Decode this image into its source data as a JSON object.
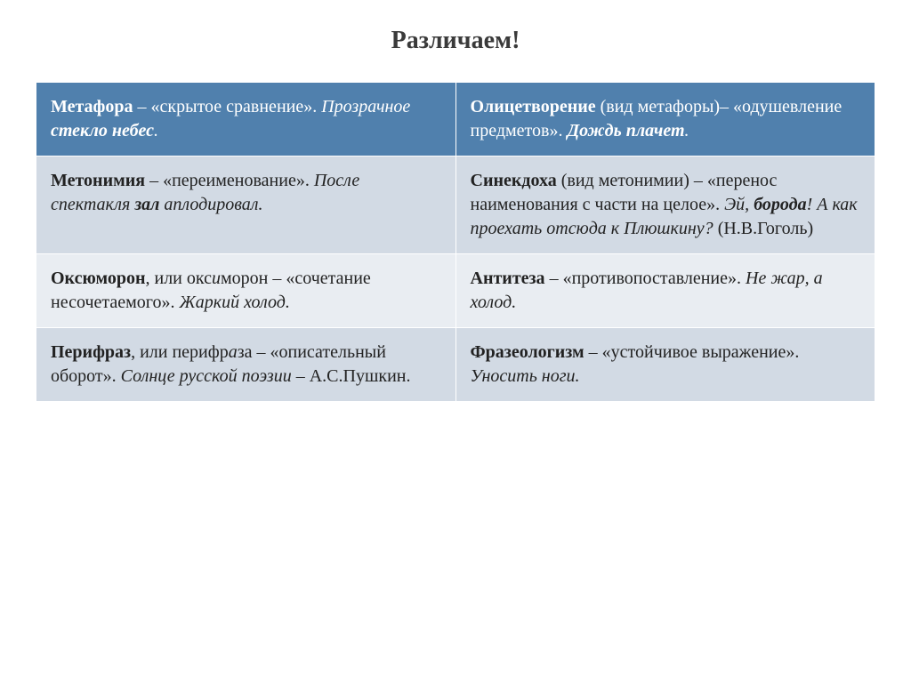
{
  "title": "Различаем!",
  "table": {
    "columns": [
      "left",
      "right"
    ],
    "col_width_pct": [
      50,
      50
    ],
    "header_bg": "#5080ad",
    "header_text_color": "#ffffff",
    "row_a_bg": "#d2dae4",
    "row_b_bg": "#e9edf2",
    "font_family": "Times New Roman",
    "font_size_pt": 15,
    "title_font_size_pt": 21,
    "rows": [
      {
        "style": "header",
        "left": {
          "term": "Метафора",
          "def": " – «скрытое сравнение». ",
          "example_italic_prefix": "Прозрачное ",
          "example_bi": "стекло небес",
          "example_italic_suffix": "."
        },
        "right": {
          "term": "Олицетворение",
          "def": " (вид метафоры)– «одушевление предметов». ",
          "example_bi": "Дождь плачет",
          "example_italic_suffix": "."
        }
      },
      {
        "style": "a",
        "left": {
          "term": "Метонимия",
          "def": " – «переименование». ",
          "example_italic_prefix": "После спектакля ",
          "example_bi": "зал",
          "example_italic_suffix": " аплодировал."
        },
        "right": {
          "term": "Синекдоха",
          "def": " (вид метонимии) – «перенос наименования с части на целое». ",
          "example_italic_prefix": "Эй, ",
          "example_bi": "борода",
          "example_italic_suffix": "! А как проехать отсюда к Плюшкину?",
          "source": " (Н.В.Гоголь)"
        }
      },
      {
        "style": "b",
        "left": {
          "term": "Оксюморон",
          "def_plain_prefix": ", или окс",
          "def_italic_stress": "и",
          "def_plain_suffix": "морон – «сочетание несочетаемого». ",
          "example_italic": "Жаркий холод."
        },
        "right": {
          "term": "Антитеза",
          "def": " – «противопоставление». ",
          "example_italic": "Не жар, а холод."
        }
      },
      {
        "style": "a",
        "left": {
          "term": "Перифраз",
          "def_plain_prefix": ", или перифр",
          "def_italic_stress": "а",
          "def_plain_suffix": "за – «описательный оборот». ",
          "example_italic": "Солнце русской поэзии",
          "def_after_example": " – А.С.Пушкин."
        },
        "right": {
          "term": "Фразеологизм",
          "def": " – «устойчивое выражение». ",
          "example_italic": "Уносить ноги."
        }
      }
    ]
  }
}
